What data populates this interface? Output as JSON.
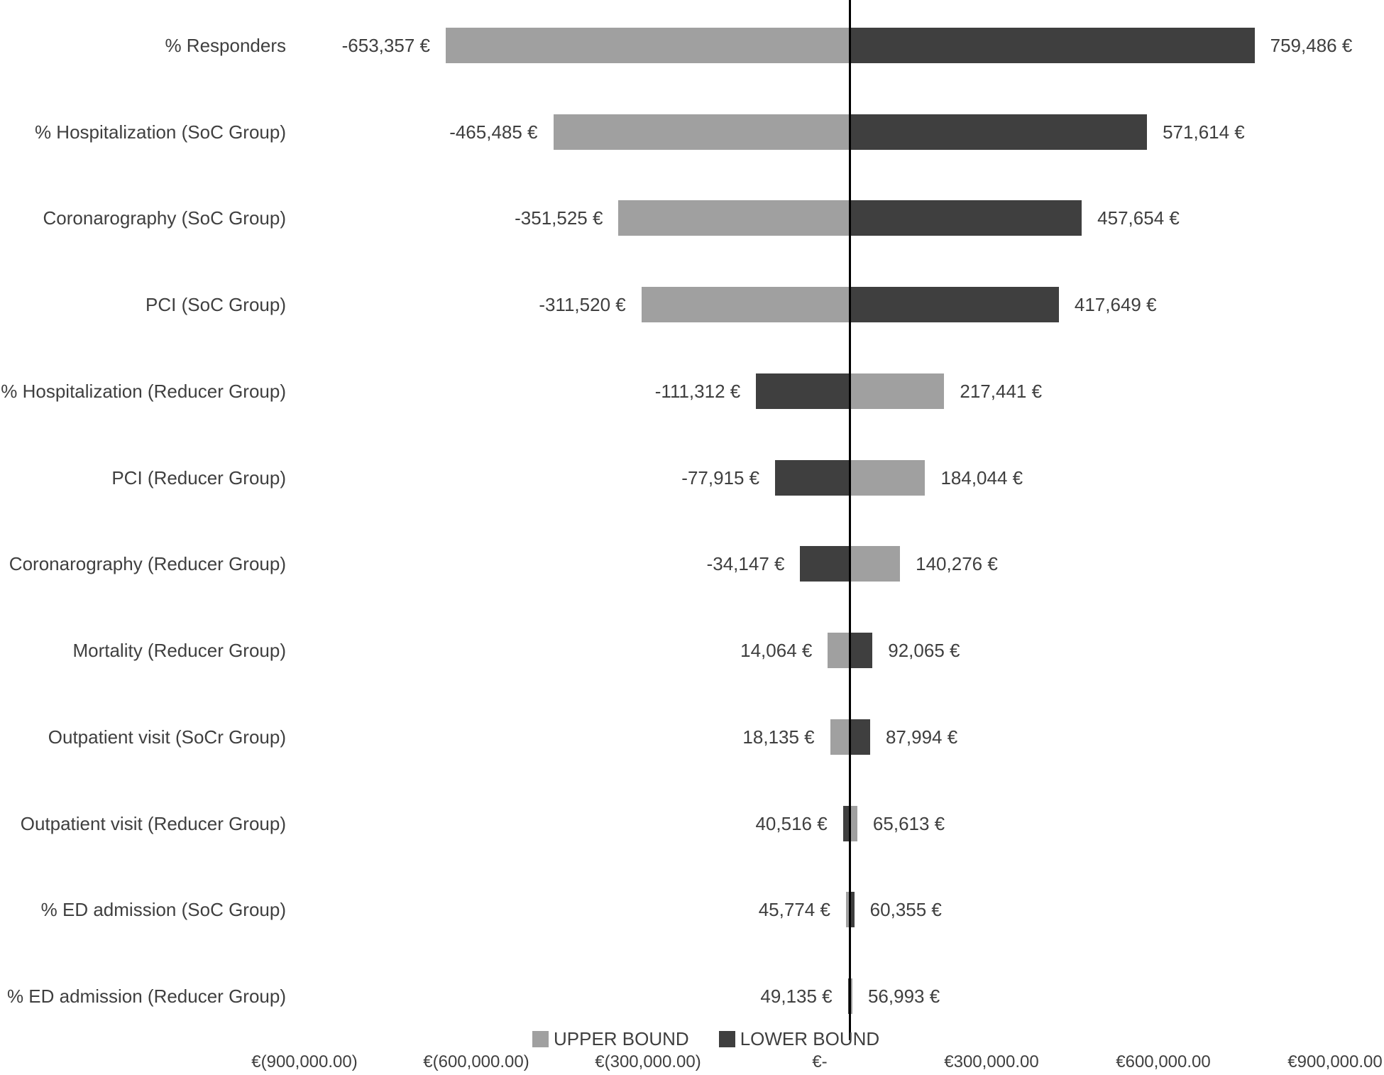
{
  "chart_data": {
    "type": "bar",
    "subtype": "tornado",
    "orientation": "horizontal",
    "title": "",
    "xlabel": "",
    "ylabel": "",
    "grid": false,
    "legend_position": "bottom",
    "xlim": [
      -900000,
      900000
    ],
    "base_value": 53064.5,
    "value_label_suffix": " €",
    "categories": [
      "% Responders",
      "% Hospitalization (SoC Group)",
      "Coronarography (SoC Group)",
      "PCI (SoC Group)",
      "% Hospitalization (Reducer Group)",
      "PCI (Reducer Group)",
      "Coronarography (Reducer Group)",
      "Mortality (Reducer Group)",
      "Outpatient visit (SoCr Group)",
      "Outpatient visit (Reducer Group)",
      "% ED admission (SoC Group)",
      "% ED admission (Reducer Group)"
    ],
    "series": [
      {
        "name": "UPPER BOUND",
        "color": "#a0a0a0",
        "values": [
          -653357,
          -465485,
          -351525,
          -311520,
          217441,
          184044,
          140276,
          14064,
          18135,
          65613,
          45774,
          56993
        ]
      },
      {
        "name": "LOWER BOUND",
        "color": "#3f3f3f",
        "values": [
          759486,
          571614,
          457654,
          417649,
          -111312,
          -77915,
          -34147,
          92065,
          87994,
          40516,
          60355,
          49135
        ]
      }
    ],
    "x_ticks": [
      {
        "value": -900000,
        "label": "€(900,000.00)"
      },
      {
        "value": -600000,
        "label": "€(600,000.00)"
      },
      {
        "value": -300000,
        "label": "€(300,000.00)"
      },
      {
        "value": 0,
        "label": "€-"
      },
      {
        "value": 300000,
        "label": "€300,000.00"
      },
      {
        "value": 600000,
        "label": "€600,000.00"
      },
      {
        "value": 900000,
        "label": "€900,000.00"
      }
    ],
    "baseline_color": "#000000",
    "text_color": "#3f3f3f",
    "background_color": "#ffffff"
  }
}
